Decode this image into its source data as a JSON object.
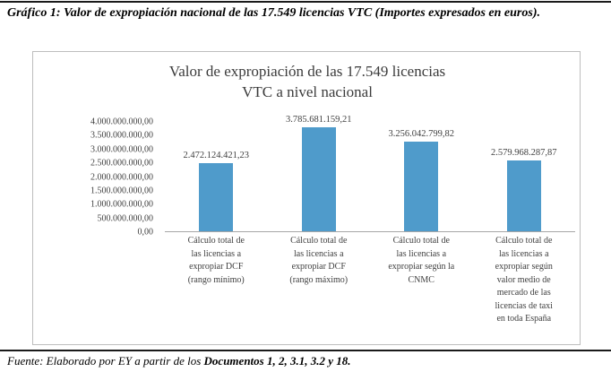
{
  "document": {
    "caption": "Gráfico 1: Valor de expropiación nacional de las 17.549 licencias VTC (Importes expresados en euros).",
    "source_prefix": "Fuente: Elaborado por EY a partir de los ",
    "source_bold": "Documentos 1, 2, 3.1, 3.2 y 18."
  },
  "chart": {
    "title_lines": {
      "0": "Valor de expropiación de las 17.549 licencias",
      "1": "VTC a nivel nacional"
    }
  },
  "chart_data": {
    "type": "bar",
    "title": "Valor de expropiación de las 17.549 licencias VTC a nivel nacional",
    "xlabel": "",
    "ylabel": "",
    "ylim": [
      0,
      4000000000
    ],
    "grid": false,
    "legend": false,
    "bar_color": "#4f9bcb",
    "y_tick_labels": [
      "0,00",
      "500.000.000,00",
      "1.000.000.000,00",
      "1.500.000.000,00",
      "2.000.000.000,00",
      "2.500.000.000,00",
      "3.000.000.000,00",
      "3.500.000.000,00",
      "4.000.000.000,00"
    ],
    "categories": [
      "Cálculo total de las licencias a expropiar DCF (rango mínimo)",
      "Cálculo total de las licencias a expropiar DCF (rango máximo)",
      "Cálculo total de las licencias a expropiar según la CNMC",
      "Cálculo total de las licencias a expropiar según valor medio de mercado de las licencias de taxi en toda España"
    ],
    "category_lines": [
      [
        "Cálculo total de",
        "las licencias a",
        "expropiar DCF",
        "(rango mínimo)"
      ],
      [
        "Cálculo total de",
        "las licencias a",
        "expropiar DCF",
        "(rango máximo)"
      ],
      [
        "Cálculo total de",
        "las licencias a",
        "expropiar según la",
        "CNMC"
      ],
      [
        "Cálculo total de",
        "las licencias a",
        "expropiar según",
        "valor medio de",
        "mercado de las",
        "licencias de taxi",
        "en toda España"
      ]
    ],
    "values": [
      2472124421.23,
      3785681159.21,
      3256042799.82,
      2579968287.87
    ],
    "value_labels": [
      "2.472.124.421,23",
      "3.785.681.159,21",
      "3.256.042.799,82",
      "2.579.968.287,87"
    ]
  }
}
